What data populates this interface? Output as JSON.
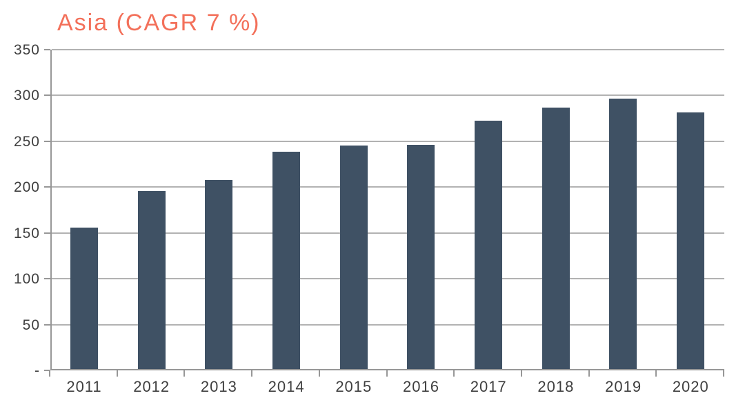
{
  "chart": {
    "title": "Asia (CAGR 7 %)"
  },
  "colors": {
    "title": "#F3705A",
    "bar": "#3F5164",
    "gridline": "#B2B2B2",
    "axis": "#979797",
    "tick_label": "#3F3F3F"
  },
  "chart_data": {
    "type": "bar",
    "title": "Asia (CAGR 7 %)",
    "categories": [
      "2011",
      "2012",
      "2013",
      "2014",
      "2015",
      "2016",
      "2017",
      "2018",
      "2019",
      "2020"
    ],
    "values": [
      154,
      194,
      206,
      237,
      244,
      245,
      271,
      285,
      295,
      280
    ],
    "xlabel": "",
    "ylabel": "",
    "ylim": [
      0,
      350
    ],
    "ytick_interval": 50,
    "ytick_labels": [
      "-",
      "50",
      "100",
      "150",
      "200",
      "250",
      "300",
      "350"
    ],
    "grid": true,
    "legend_position": "none",
    "bar_color": "#3F5164",
    "title_color": "#F3705A"
  }
}
